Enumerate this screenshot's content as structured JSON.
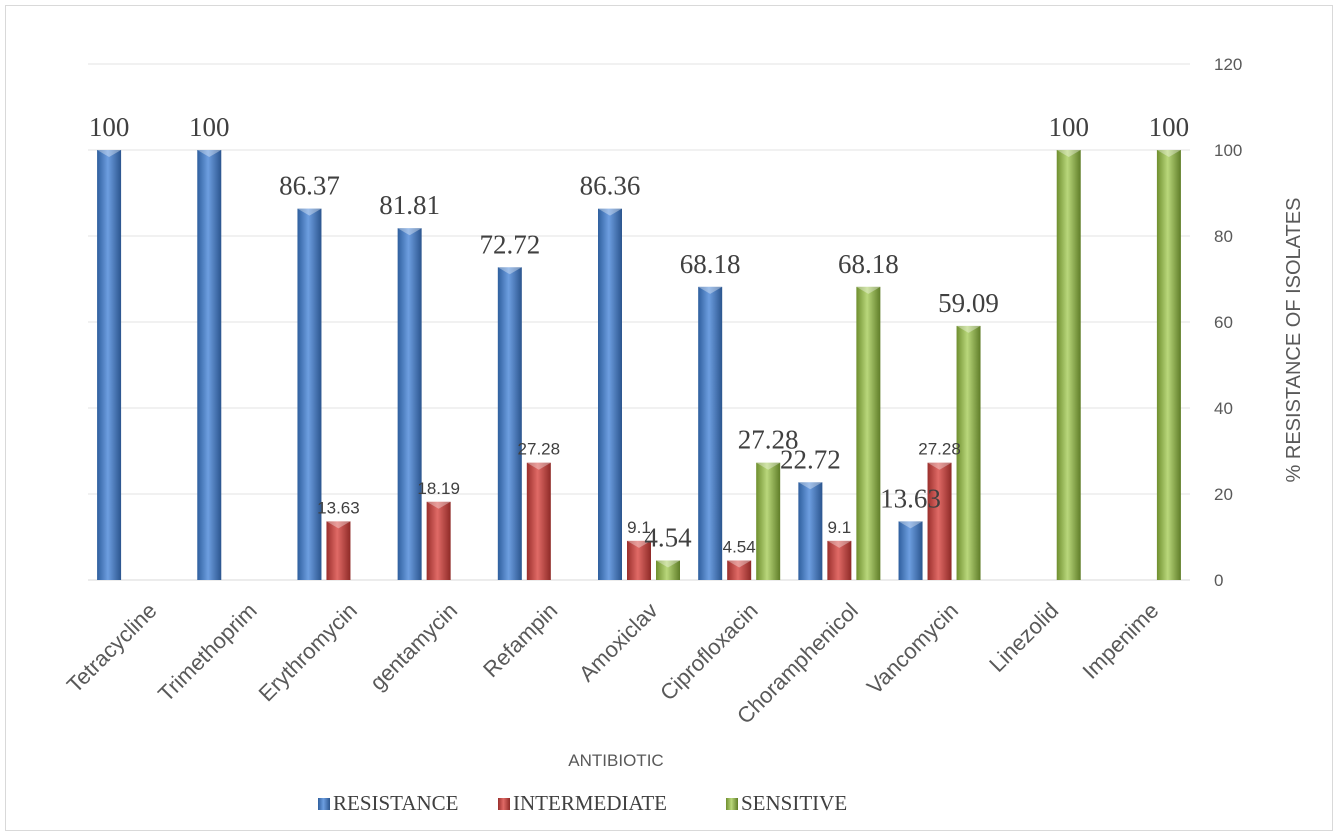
{
  "chart_data": {
    "type": "bar",
    "categories": [
      "Tetracycline",
      "Trimethoprim",
      "Erythromycin",
      "gentamycin",
      "Refampin",
      "Amoxiclav",
      "Ciprofloxacin",
      "Choramphenicol",
      "Vancomycin",
      "Linezolid",
      "Impenime"
    ],
    "series": [
      {
        "name": "RESISTANCE",
        "color": "#4a7ebb",
        "values": [
          100,
          100,
          86.37,
          81.81,
          72.72,
          86.36,
          68.18,
          22.72,
          13.63,
          null,
          null
        ]
      },
      {
        "name": "INTERMEDIATE",
        "color": "#c0504d",
        "values": [
          null,
          null,
          13.63,
          18.19,
          27.28,
          9.1,
          4.54,
          9.1,
          27.28,
          null,
          null
        ]
      },
      {
        "name": "SENSITIVE",
        "color": "#9bbb59",
        "values": [
          null,
          null,
          null,
          null,
          null,
          4.54,
          27.28,
          68.18,
          59.09,
          100,
          100
        ]
      }
    ],
    "data_labels": {
      "RESISTANCE": [
        "100",
        "100",
        "86.37",
        "81.81",
        "72.72",
        "86.36",
        "68.18",
        "22.72",
        "13.63",
        null,
        null
      ],
      "INTERMEDIATE": [
        null,
        null,
        "13.63",
        "18.19",
        "27.28",
        "9.1",
        "4.54",
        "9.1",
        "27.28",
        null,
        null
      ],
      "SENSITIVE": [
        null,
        null,
        null,
        null,
        null,
        "4.54",
        "27.28",
        "68.18",
        "59.09",
        "100",
        "100"
      ]
    },
    "xlabel": "ANTIBIOTIC",
    "ylabel": "% RESISTANCE OF ISOLATES",
    "ylim": [
      0,
      120
    ],
    "yticks": [
      0,
      20,
      40,
      60,
      80,
      100,
      120
    ],
    "y_axis_side": "right",
    "grid": true,
    "legend_position": "bottom"
  }
}
